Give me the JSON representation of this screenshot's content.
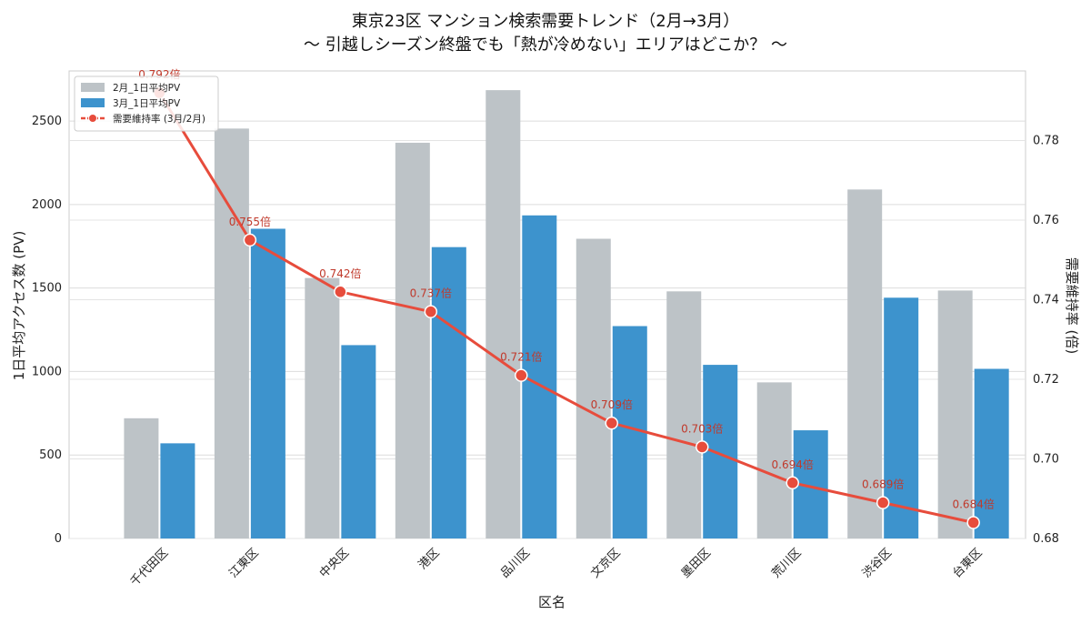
{
  "chart_data": {
    "type": "bar",
    "title": "東京23区 マンション検索需要トレンド（2月→3月）",
    "subtitle": "〜 引越しシーズン終盤でも「熱が冷めない」エリアはどこか？ 〜",
    "xlabel": "区名",
    "ylabel": "1日平均アクセス数 (PV)",
    "y2label": "需要維持率 (倍)",
    "categories": [
      "千代田区",
      "江東区",
      "中央区",
      "港区",
      "品川区",
      "文京区",
      "墨田区",
      "荒川区",
      "渋谷区",
      "台東区"
    ],
    "ylim": [
      0,
      2800
    ],
    "yticks": [
      0,
      500,
      1000,
      1500,
      2000,
      2500
    ],
    "y2lim": [
      0.68,
      0.7975
    ],
    "y2ticks": [
      0.68,
      0.7,
      0.72,
      0.74,
      0.76,
      0.78
    ],
    "y2tick_labels": [
      "0.68",
      "0.70",
      "0.72",
      "0.74",
      "0.76",
      "0.78"
    ],
    "series": [
      {
        "name": "2月_1日平均PV",
        "kind": "bar",
        "color": "#bdc3c7",
        "values": [
          720,
          2455,
          1560,
          2370,
          2685,
          1795,
          1480,
          935,
          2090,
          1485
        ]
      },
      {
        "name": "3月_1日平均PV",
        "kind": "bar",
        "color": "#3d93cd",
        "values": [
          570,
          1855,
          1158,
          1745,
          1935,
          1272,
          1040,
          648,
          1442,
          1016
        ]
      },
      {
        "name": "需要維持率 (3月/2月)",
        "kind": "line",
        "axis": "right",
        "color": "#e74c3c",
        "values": [
          0.792,
          0.755,
          0.742,
          0.737,
          0.721,
          0.709,
          0.703,
          0.694,
          0.689,
          0.684
        ]
      }
    ],
    "data_labels": [
      "0.792倍",
      "0.755倍",
      "0.742倍",
      "0.737倍",
      "0.721倍",
      "0.709倍",
      "0.703倍",
      "0.694倍",
      "0.689倍",
      "0.684倍"
    ],
    "grid": true,
    "legend_position": "top-left"
  }
}
